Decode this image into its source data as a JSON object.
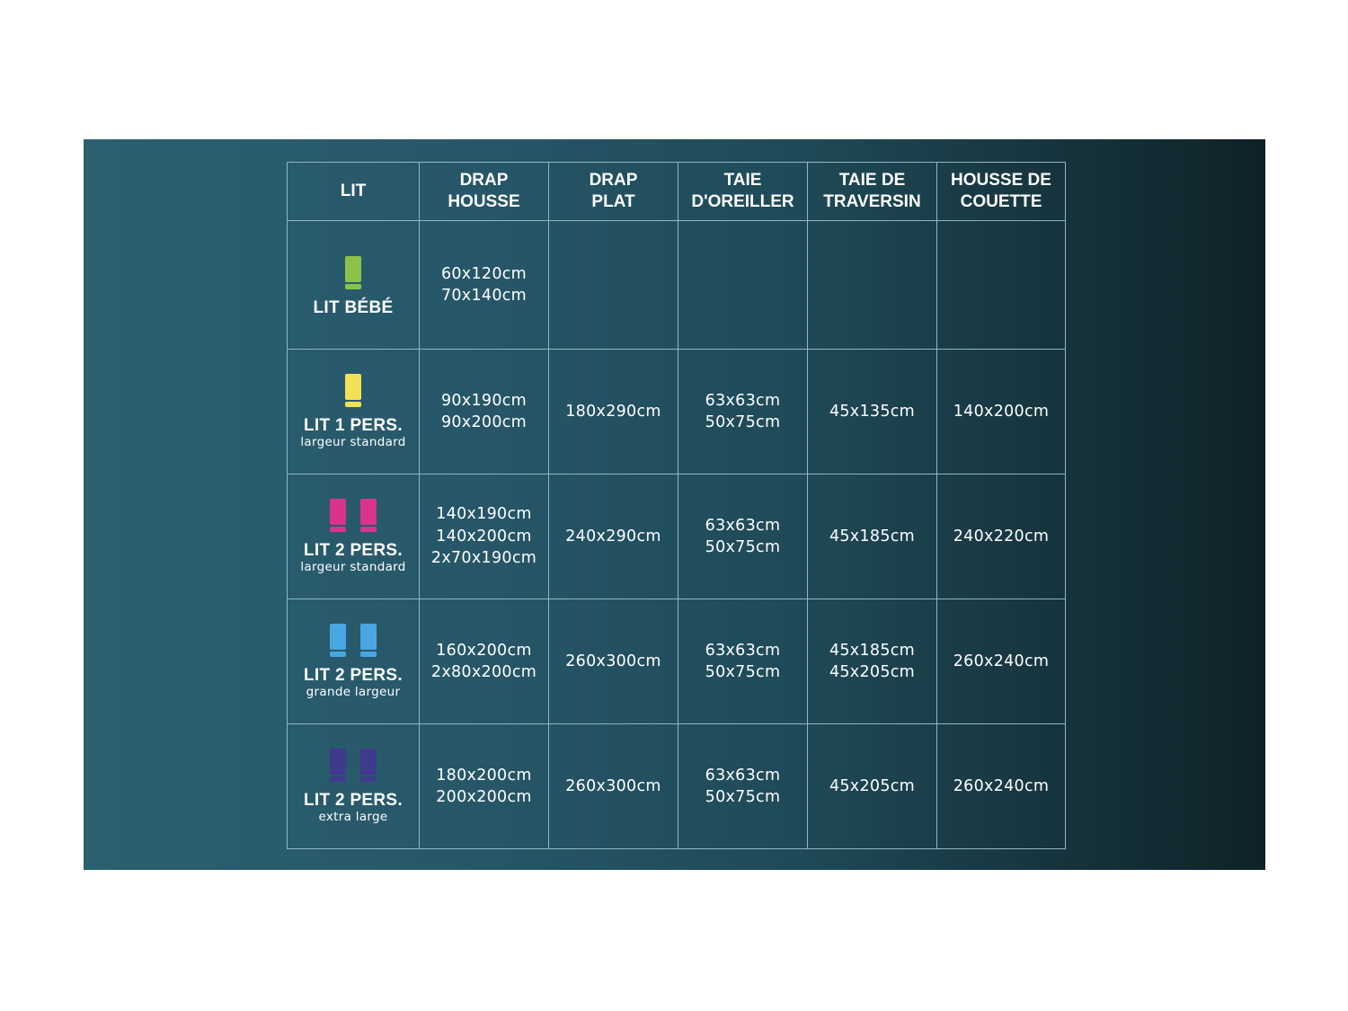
{
  "headers": [
    [
      "LIT"
    ],
    [
      "DRAP",
      "HOUSSE"
    ],
    [
      "DRAP",
      "PLAT"
    ],
    [
      "TAIE",
      "D'OREILLER"
    ],
    [
      "TAIE DE",
      "TRAVERSIN"
    ],
    [
      "HOUSSE DE",
      "COUETTE"
    ]
  ],
  "rows": [
    {
      "label": "LIT BÉBÉ",
      "sublabel": "",
      "icon": "single-bed-icon",
      "beds": 1,
      "color": "#8bc34a",
      "cells": [
        [
          "60x120cm",
          "70x140cm"
        ],
        [],
        [],
        [],
        []
      ]
    },
    {
      "label": "LIT 1 PERS.",
      "sublabel": "largeur standard",
      "icon": "single-bed-icon",
      "beds": 1,
      "color": "#f2e055",
      "cells": [
        [
          "90x190cm",
          "90x200cm"
        ],
        [
          "180x290cm"
        ],
        [
          "63x63cm",
          "50x75cm"
        ],
        [
          "45x135cm"
        ],
        [
          "140x200cm"
        ]
      ]
    },
    {
      "label": "LIT 2 PERS.",
      "sublabel": "largeur standard",
      "icon": "double-bed-icon",
      "beds": 2,
      "color": "#d9348a",
      "cells": [
        [
          "140x190cm",
          "140x200cm",
          "2x70x190cm"
        ],
        [
          "240x290cm"
        ],
        [
          "63x63cm",
          "50x75cm"
        ],
        [
          "45x185cm"
        ],
        [
          "240x220cm"
        ]
      ]
    },
    {
      "label": "LIT 2 PERS.",
      "sublabel": "grande largeur",
      "icon": "double-bed-icon",
      "beds": 2,
      "color": "#4aa6e2",
      "cells": [
        [
          "160x200cm",
          "2x80x200cm"
        ],
        [
          "260x300cm"
        ],
        [
          "63x63cm",
          "50x75cm"
        ],
        [
          "45x185cm",
          "45x205cm"
        ],
        [
          "260x240cm"
        ]
      ]
    },
    {
      "label": "LIT 2 PERS.",
      "sublabel": "extra large",
      "icon": "double-bed-icon",
      "beds": 2,
      "color": "#403a8c",
      "cells": [
        [
          "180x200cm",
          "200x200cm"
        ],
        [
          "260x300cm"
        ],
        [
          "63x63cm",
          "50x75cm"
        ],
        [
          "45x205cm"
        ],
        [
          "260x240cm"
        ]
      ]
    }
  ]
}
